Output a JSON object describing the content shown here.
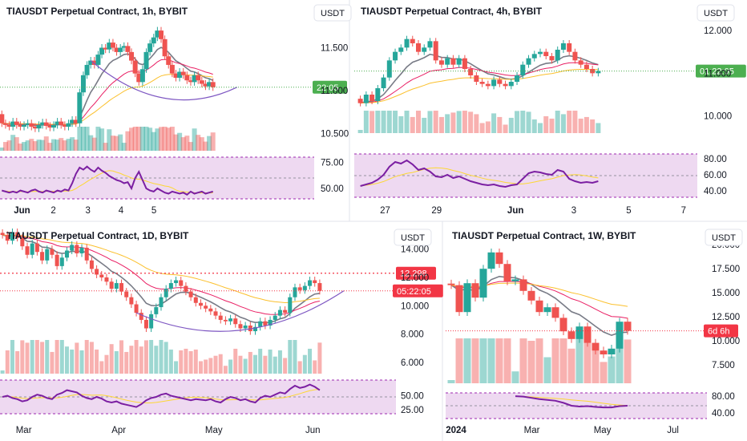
{
  "colors": {
    "up": "#26a69a",
    "down": "#ef5350",
    "ma": "#787b86",
    "band": "#ce93d8",
    "rsi": "#7b1fa2",
    "rsiMa": "#fdd835",
    "curve": "#7e57c2",
    "lastUp": "#4caf50",
    "lastDown": "#f23645",
    "text": "#131722",
    "axis": "#2a2e39"
  },
  "chart_data": [
    {
      "type": "candlestick",
      "title": "TIAUSDT Perpetual Contract, 1h, BYBIT",
      "currency": "USDT",
      "y_ticks": [
        "11.500",
        "11.000",
        "10.500"
      ],
      "y_tick_values": [
        11.5,
        11.0,
        10.5
      ],
      "ylim": [
        10.3,
        12.0
      ],
      "x_ticks": [
        "Jun",
        "2",
        "3",
        "4",
        "5"
      ],
      "x_tick_positions": [
        0.07,
        0.17,
        0.28,
        0.385,
        0.49
      ],
      "price_label": "22:05",
      "price_value": 11.04,
      "price_color": "up",
      "closes": [
        10.62,
        10.6,
        10.58,
        10.64,
        10.6,
        10.58,
        10.6,
        10.62,
        10.58,
        10.56,
        10.6,
        10.63,
        10.59,
        10.57,
        10.6,
        10.64,
        10.6,
        10.58,
        10.62,
        10.66,
        10.62,
        10.98,
        11.18,
        11.3,
        11.35,
        11.3,
        11.42,
        11.5,
        11.48,
        11.56,
        11.5,
        11.45,
        11.5,
        11.52,
        11.45,
        11.35,
        11.2,
        11.1,
        11.25,
        11.45,
        11.55,
        11.62,
        11.7,
        11.6,
        11.4,
        11.3,
        11.2,
        11.15,
        11.22,
        11.18,
        11.12,
        11.1,
        11.18,
        11.12,
        11.08,
        11.05,
        11.1,
        11.04
      ],
      "rsi_ticks": [
        "75.00",
        "50.00"
      ],
      "rsi_tick_values": [
        75,
        50
      ],
      "rsi_lim": [
        40,
        80
      ],
      "rsi": [
        48,
        47,
        46,
        47,
        46,
        48,
        47,
        46,
        48,
        49,
        47,
        46,
        48,
        47,
        46,
        48,
        47,
        49,
        48,
        55,
        64,
        70,
        68,
        71,
        68,
        66,
        70,
        67,
        65,
        62,
        60,
        58,
        57,
        55,
        56,
        50,
        60,
        66,
        58,
        50,
        48,
        47,
        50,
        48,
        46,
        45,
        47,
        46,
        45,
        46,
        44,
        47,
        45,
        46,
        47,
        45,
        46,
        47
      ],
      "has_curve": true
    },
    {
      "type": "candlestick",
      "title": "TIAUSDT Perpetual Contract, 4h, BYBIT",
      "currency": "USDT",
      "y_ticks": [
        "12.000",
        "11.000",
        "10.000"
      ],
      "y_tick_values": [
        12.0,
        11.0,
        10.0
      ],
      "ylim": [
        9.6,
        12.6
      ],
      "x_ticks": [
        "27",
        "29",
        "Jun",
        "3",
        "5",
        "7"
      ],
      "x_tick_positions": [
        0.09,
        0.24,
        0.47,
        0.64,
        0.8,
        0.96
      ],
      "price_label": "01:22:05",
      "price_value": 11.05,
      "price_color": "up",
      "closes": [
        10.3,
        10.5,
        10.35,
        10.65,
        10.9,
        11.3,
        11.5,
        11.6,
        11.8,
        11.7,
        11.5,
        11.6,
        11.75,
        11.3,
        11.2,
        11.35,
        11.2,
        11.35,
        11.1,
        10.95,
        10.8,
        10.75,
        10.7,
        10.85,
        10.75,
        10.7,
        10.8,
        10.95,
        11.2,
        11.35,
        11.45,
        11.5,
        11.4,
        11.3,
        11.55,
        11.7,
        11.5,
        11.3,
        11.2,
        11.1,
        11.0,
        11.05
      ],
      "rsi_ticks": [
        "80.00",
        "60.00",
        "40.00"
      ],
      "rsi_tick_values": [
        80,
        60,
        40
      ],
      "rsi_lim": [
        32,
        86
      ],
      "rsi": [
        46,
        48,
        50,
        54,
        60,
        70,
        76,
        74,
        78,
        73,
        66,
        68,
        64,
        58,
        57,
        60,
        56,
        58,
        55,
        52,
        50,
        48,
        47,
        48,
        46,
        45,
        47,
        48,
        55,
        62,
        64,
        63,
        61,
        60,
        66,
        64,
        55,
        52,
        50,
        51,
        50,
        52
      ],
      "has_curve": false
    },
    {
      "type": "candlestick",
      "title": "TIAUSDT Perpetual Contract, 1D, BYBIT",
      "currency": "USDT",
      "y_ticks": [
        "14.000",
        "12.000",
        "10.000",
        "8.000",
        "6.000"
      ],
      "y_tick_values": [
        14,
        12,
        10,
        8,
        6
      ],
      "ylim": [
        5.2,
        15.4
      ],
      "x_ticks": [
        "Mar",
        "Apr",
        "May",
        "Jun"
      ],
      "x_tick_positions": [
        0.06,
        0.3,
        0.54,
        0.79
      ],
      "price_label": "05:22:05",
      "price_value": 11.05,
      "price_color": "down",
      "level_label": "12.298",
      "level_value": 12.298,
      "closes": [
        15.0,
        14.6,
        15.2,
        14.8,
        14.2,
        13.6,
        14.4,
        13.8,
        13.2,
        14.0,
        13.6,
        12.8,
        13.4,
        13.9,
        14.3,
        13.7,
        14.1,
        13.2,
        12.6,
        12.2,
        12.0,
        11.7,
        11.2,
        11.6,
        11.0,
        10.6,
        10.1,
        9.5,
        9.0,
        8.4,
        9.4,
        9.9,
        10.6,
        11.2,
        11.6,
        11.8,
        11.4,
        11.0,
        10.6,
        10.2,
        10.0,
        9.8,
        9.6,
        9.3,
        9.0,
        8.9,
        9.1,
        8.7,
        8.4,
        8.6,
        8.2,
        8.5,
        8.9,
        8.6,
        9.0,
        9.3,
        9.7,
        9.5,
        10.6,
        11.3,
        11.1,
        11.4,
        11.8,
        11.6,
        11.05
      ],
      "rsi_ticks": [
        "50.00",
        "25.00"
      ],
      "rsi_tick_values": [
        50,
        25
      ],
      "rsi_lim": [
        18,
        78
      ],
      "rsi": [
        48,
        50,
        46,
        44,
        40,
        42,
        48,
        52,
        50,
        46,
        44,
        52,
        55,
        60,
        58,
        56,
        50,
        46,
        44,
        48,
        45,
        40,
        38,
        40,
        36,
        34,
        32,
        30,
        35,
        42,
        46,
        48,
        52,
        54,
        50,
        48,
        46,
        44,
        42,
        44,
        43,
        42,
        44,
        40,
        38,
        44,
        48,
        46,
        42,
        44,
        40,
        38,
        46,
        50,
        48,
        52,
        56,
        54,
        62,
        68,
        64,
        66,
        70,
        66,
        60
      ],
      "has_curve": true
    },
    {
      "type": "candlestick",
      "title": "TIAUSDT Perpetual Contract, 1W, BYBIT",
      "currency": "USDT",
      "y_ticks": [
        "20.000",
        "17.500",
        "15.000",
        "12.500",
        "10.000",
        "7.500"
      ],
      "y_tick_values": [
        20,
        17.5,
        15,
        12.5,
        10,
        7.5
      ],
      "ylim": [
        5.6,
        21.6
      ],
      "x_ticks": [
        "2024",
        "Mar",
        "May",
        "Jul"
      ],
      "x_tick_positions": [
        0.04,
        0.33,
        0.6,
        0.87
      ],
      "price_label": "6d 6h",
      "price_value": 11.05,
      "price_color": "down",
      "closes": [
        15.8,
        13.0,
        16.0,
        14.5,
        17.5,
        19.2,
        18.0,
        16.2,
        16.4,
        15.2,
        14.2,
        13.0,
        13.5,
        12.4,
        11.0,
        10.2,
        11.5,
        9.8,
        9.0,
        8.6,
        9.2,
        12.0,
        11.05
      ],
      "rsi_ticks": [
        "80.00",
        "40.00"
      ],
      "rsi_tick_values": [
        80,
        40
      ],
      "rsi_lim": [
        26,
        88
      ],
      "rsi": [
        null,
        null,
        null,
        null,
        null,
        null,
        null,
        null,
        80,
        79,
        76,
        73,
        71,
        69,
        64,
        57,
        55,
        56,
        54,
        53,
        53,
        56,
        57
      ],
      "has_curve": false
    }
  ]
}
